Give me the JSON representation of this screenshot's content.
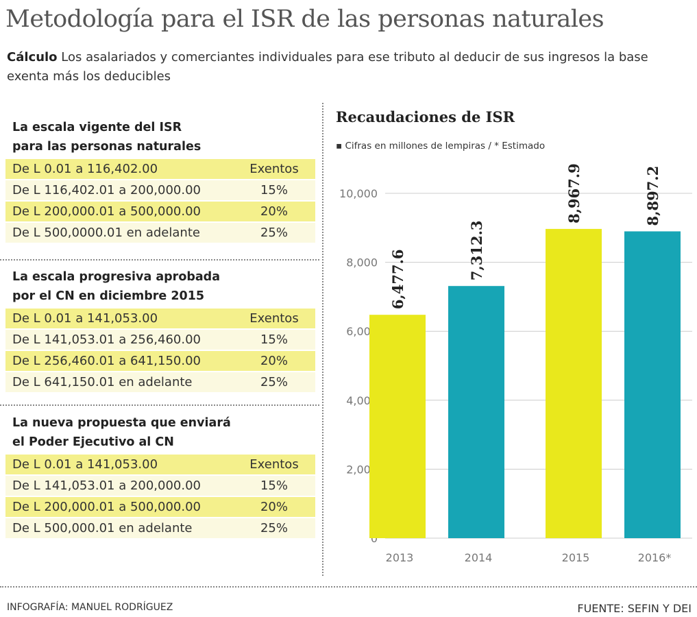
{
  "title": "Metodología para el ISR de las personas naturales",
  "subtitle": {
    "lead": "Cálculo",
    "text": " Los asalariados y comerciantes individuales para ese tributo al deducir de sus ingresos la base exenta más los deducibles"
  },
  "sections": [
    {
      "heading": [
        "La escala vigente del ISR",
        "para las personas naturales"
      ],
      "rows": [
        [
          "De  L 0.01 a 116,402.00",
          "Exentos"
        ],
        [
          "De L 116,402.01 a 200,000.00",
          "15%"
        ],
        [
          "De L 200,000.01 a 500,000.00",
          "20%"
        ],
        [
          "De L 500,0000.01 en adelante",
          "25%"
        ]
      ]
    },
    {
      "heading": [
        "La escala progresiva aprobada",
        "por el CN en diciembre 2015"
      ],
      "rows": [
        [
          "De L 0.01 a 141,053.00",
          "Exentos"
        ],
        [
          "De L 141,053.01 a 256,460.00",
          "15%"
        ],
        [
          "De L 256,460.01 a 641,150.00",
          "20%"
        ],
        [
          "De L 641,150.01 en adelante",
          "25%"
        ]
      ]
    },
    {
      "heading": [
        "La nueva propuesta que enviará",
        "el Poder Ejecutivo al CN"
      ],
      "rows": [
        [
          "De L 0.01 a 141,053.00",
          "Exentos"
        ],
        [
          "De L 141,053.01 a 200,000.00",
          "15%"
        ],
        [
          "De L 200,000.01 a 500,000.00",
          "20%"
        ],
        [
          "De L 500,000.01 en adelante",
          "25%"
        ]
      ]
    }
  ],
  "chart_data": {
    "type": "bar",
    "title": "Recaudaciones de ISR",
    "subtitle": "▪ Cifras en millones de lempiras / * Estimado",
    "categories": [
      "2013",
      "2014",
      "2015",
      "2016*"
    ],
    "values": [
      6477.6,
      7312.3,
      8967.9,
      8897.2
    ],
    "value_labels": [
      "6,477.6",
      "7,312.3",
      "8,967.9",
      "8,897.2"
    ],
    "colors": [
      "#e9e81c",
      "#17a5b5",
      "#e9e81c",
      "#17a5b5"
    ],
    "ylim": [
      0,
      10000
    ],
    "yticks": [
      0,
      2000,
      4000,
      6000,
      8000,
      10000
    ],
    "ytick_labels": [
      "0",
      "2,000",
      "4,000",
      "6,000",
      "8,000",
      "10,000"
    ],
    "grid": true
  },
  "footer": {
    "credit": "INFOGRAFÍA: MANUEL RODRÍGUEZ",
    "source": "FUENTE: SEFIN Y DEI"
  }
}
